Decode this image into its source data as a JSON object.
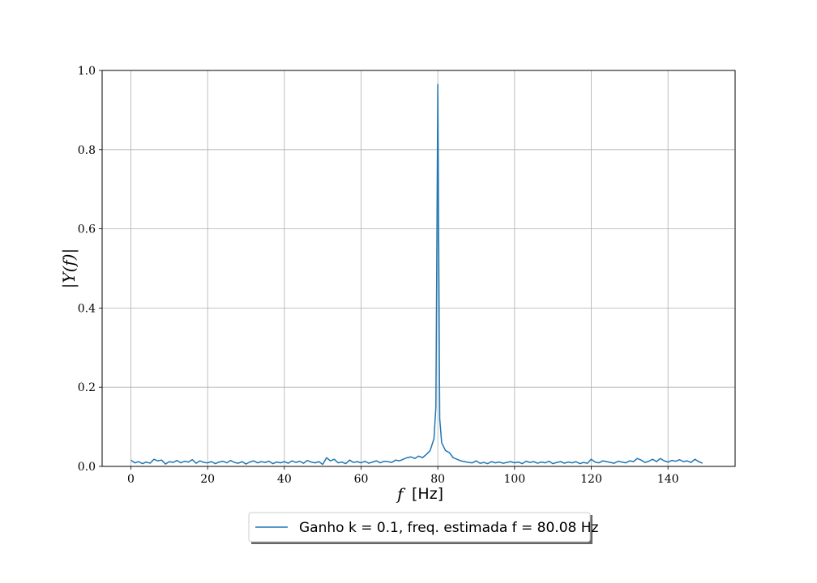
{
  "chart_data": {
    "type": "line",
    "xlabel": "f [Hz]",
    "xlabel_var": "f",
    "xlabel_unit": "[Hz]",
    "ylabel": "|Y(f)|",
    "xlim": [
      -7.5,
      157.5
    ],
    "ylim": [
      0,
      1.0
    ],
    "xticks": [
      0,
      20,
      40,
      60,
      80,
      100,
      120,
      140
    ],
    "yticks": [
      0.0,
      0.2,
      0.4,
      0.6,
      0.8,
      1.0
    ],
    "xtick_labels": [
      "0",
      "20",
      "40",
      "60",
      "80",
      "100",
      "120",
      "140"
    ],
    "ytick_labels": [
      "0.0",
      "0.2",
      "0.4",
      "0.6",
      "0.8",
      "1.0"
    ],
    "grid": true,
    "legend_position": "bottom-center (outside)",
    "series": [
      {
        "name": "Ganho k = 0.1, freq. estimada f = 80.08 Hz",
        "color": "#1f77b4",
        "x": [
          0,
          1,
          2,
          3,
          4,
          5,
          6,
          7,
          8,
          9,
          10,
          11,
          12,
          13,
          14,
          15,
          16,
          17,
          18,
          19,
          20,
          21,
          22,
          23,
          24,
          25,
          26,
          27,
          28,
          29,
          30,
          31,
          32,
          33,
          34,
          35,
          36,
          37,
          38,
          39,
          40,
          41,
          42,
          43,
          44,
          45,
          46,
          47,
          48,
          49,
          50,
          51,
          52,
          53,
          54,
          55,
          56,
          57,
          58,
          59,
          60,
          61,
          62,
          63,
          64,
          65,
          66,
          67,
          68,
          69,
          70,
          71,
          72,
          73,
          74,
          75,
          76,
          77,
          78,
          79,
          79.5,
          80,
          80.5,
          81,
          82,
          83,
          84,
          85,
          86,
          87,
          88,
          89,
          90,
          91,
          92,
          93,
          94,
          95,
          96,
          97,
          98,
          99,
          100,
          101,
          102,
          103,
          104,
          105,
          106,
          107,
          108,
          109,
          110,
          111,
          112,
          113,
          114,
          115,
          116,
          117,
          118,
          119,
          120,
          121,
          122,
          123,
          124,
          125,
          126,
          127,
          128,
          129,
          130,
          131,
          132,
          133,
          134,
          135,
          136,
          137,
          138,
          139,
          140,
          141,
          142,
          143,
          144,
          145,
          146,
          147,
          148,
          149
        ],
        "y": [
          0.016,
          0.009,
          0.012,
          0.007,
          0.011,
          0.008,
          0.018,
          0.014,
          0.016,
          0.006,
          0.012,
          0.01,
          0.015,
          0.009,
          0.013,
          0.011,
          0.017,
          0.008,
          0.014,
          0.01,
          0.009,
          0.012,
          0.007,
          0.011,
          0.013,
          0.009,
          0.015,
          0.01,
          0.008,
          0.012,
          0.006,
          0.011,
          0.014,
          0.009,
          0.012,
          0.01,
          0.013,
          0.007,
          0.011,
          0.009,
          0.012,
          0.008,
          0.014,
          0.01,
          0.013,
          0.008,
          0.015,
          0.011,
          0.009,
          0.012,
          0.005,
          0.022,
          0.014,
          0.018,
          0.009,
          0.011,
          0.007,
          0.016,
          0.01,
          0.012,
          0.009,
          0.013,
          0.008,
          0.011,
          0.014,
          0.009,
          0.013,
          0.012,
          0.01,
          0.016,
          0.014,
          0.018,
          0.022,
          0.024,
          0.02,
          0.026,
          0.022,
          0.03,
          0.04,
          0.07,
          0.15,
          0.965,
          0.12,
          0.06,
          0.04,
          0.035,
          0.022,
          0.018,
          0.014,
          0.012,
          0.01,
          0.009,
          0.014,
          0.008,
          0.01,
          0.007,
          0.012,
          0.009,
          0.011,
          0.008,
          0.01,
          0.012,
          0.009,
          0.011,
          0.007,
          0.013,
          0.01,
          0.012,
          0.008,
          0.011,
          0.009,
          0.013,
          0.007,
          0.01,
          0.012,
          0.008,
          0.011,
          0.009,
          0.012,
          0.007,
          0.01,
          0.008,
          0.018,
          0.011,
          0.009,
          0.014,
          0.012,
          0.01,
          0.008,
          0.013,
          0.011,
          0.009,
          0.014,
          0.012,
          0.02,
          0.016,
          0.01,
          0.013,
          0.018,
          0.012,
          0.02,
          0.014,
          0.011,
          0.015,
          0.013,
          0.017,
          0.012,
          0.014,
          0.01,
          0.018,
          0.012,
          0.008
        ]
      }
    ]
  }
}
